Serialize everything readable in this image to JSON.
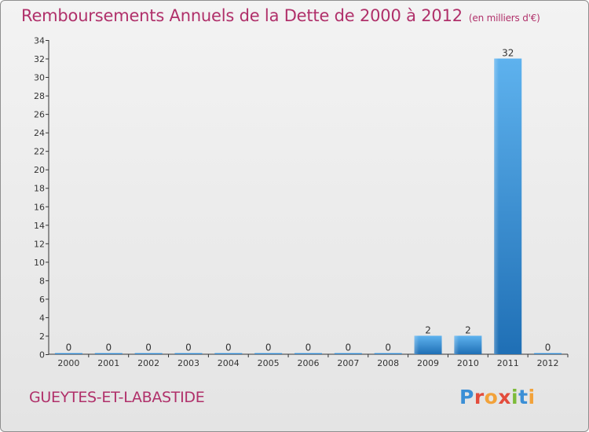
{
  "header": {
    "title": "Remboursements Annuels de la Dette de 2000 à 2012",
    "unit": "(en milliers d'€)"
  },
  "footer": {
    "commune": "GUEYTES-ET-LABASTIDE",
    "logo": "Proxiti"
  },
  "colors": {
    "title": "#b0306a",
    "bar_top": "#5eb2ee",
    "bar_bottom": "#1f6fb5",
    "axis": "#333333"
  },
  "chart_data": {
    "type": "bar",
    "title": "Remboursements Annuels de la Dette de 2000 à 2012",
    "unit": "(en milliers d'€)",
    "categories": [
      "2000",
      "2001",
      "2002",
      "2003",
      "2004",
      "2005",
      "2006",
      "2007",
      "2008",
      "2009",
      "2010",
      "2011",
      "2012"
    ],
    "values": [
      0,
      0,
      0,
      0,
      0,
      0,
      0,
      0,
      0,
      2,
      2,
      32,
      0
    ],
    "data_labels": [
      "0",
      "0",
      "0",
      "0",
      "0",
      "0",
      "0",
      "0",
      "0",
      "2",
      "2",
      "32",
      "0"
    ],
    "ylim": [
      0,
      34
    ],
    "yticks": [
      0,
      2,
      4,
      6,
      8,
      10,
      12,
      14,
      16,
      18,
      20,
      22,
      24,
      26,
      28,
      30,
      32,
      34
    ],
    "grid": false,
    "legend": "none"
  }
}
